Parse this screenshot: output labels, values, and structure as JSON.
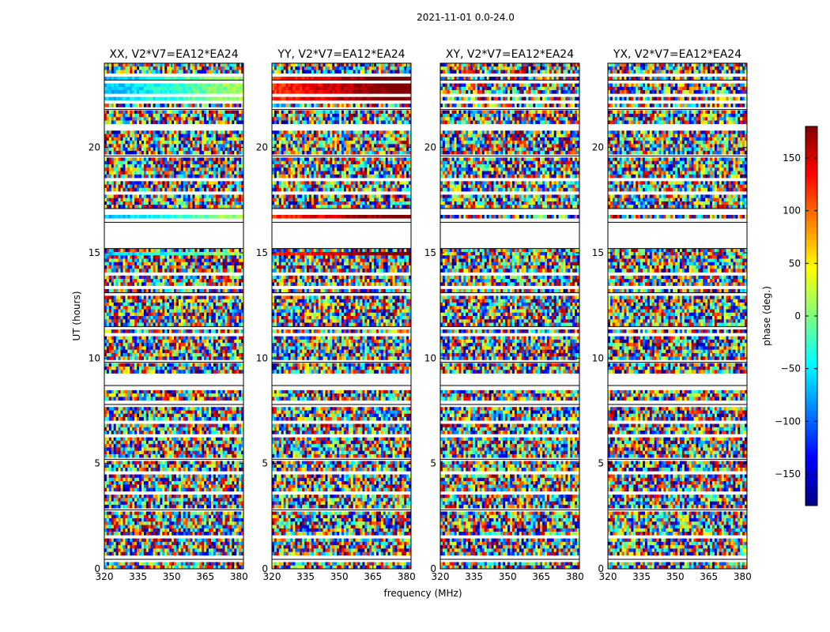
{
  "suptitle": "2021-11-01 0.0-24.0",
  "chart_data": {
    "type": "heatmap",
    "title": "2021-11-01 0.0-24.0",
    "xlabel": "frequency (MHz)",
    "ylabel": "UT (hours)",
    "xlim": [
      320,
      382
    ],
    "ylim": [
      0,
      24
    ],
    "xticks": [
      320,
      335,
      350,
      365,
      380
    ],
    "yticks": [
      0,
      5,
      10,
      15,
      20
    ],
    "colorbar": {
      "label": "phase (deg.)",
      "range": [
        -180,
        180
      ],
      "ticks": [
        -150,
        -100,
        -50,
        0,
        50,
        100,
        150
      ],
      "colormap": "jet"
    },
    "panels": [
      {
        "title": "XX, V2*V7=EA12*EA24",
        "show_ylabel": true,
        "show_xlabel": false
      },
      {
        "title": "YY, V2*V7=EA12*EA24",
        "show_ylabel": false,
        "show_xlabel": true
      },
      {
        "title": "XY, V2*V7=EA12*EA24",
        "show_ylabel": false,
        "show_xlabel": false
      },
      {
        "title": "YX, V2*V7=EA12*EA24",
        "show_ylabel": false,
        "show_xlabel": false
      }
    ],
    "gap_rows_ut": [
      0.45,
      0.62,
      1.45,
      2.8,
      3.6,
      4.5,
      5.2,
      6.3,
      7.0,
      7.8,
      8.0,
      8.6,
      8.7,
      8.95,
      9.1,
      9.8,
      10.4,
      11.1,
      11.5,
      12.0,
      12.8,
      13.1,
      13.3,
      14.0,
      15.2,
      15.3,
      15.4,
      16.45,
      16.6,
      16.8,
      17.1,
      17.9,
      18.5,
      19.6,
      20.8,
      21.1,
      21.8,
      22.1,
      22.5,
      23.2,
      23.5
    ],
    "blank_bands_ut": [
      [
        8.9,
        9.2
      ],
      [
        15.4,
        16.4
      ],
      [
        20.8,
        21.1
      ]
    ],
    "colors": {
      "axis": "#000000",
      "background": "#ffffff",
      "gap": "#ffffff"
    }
  }
}
